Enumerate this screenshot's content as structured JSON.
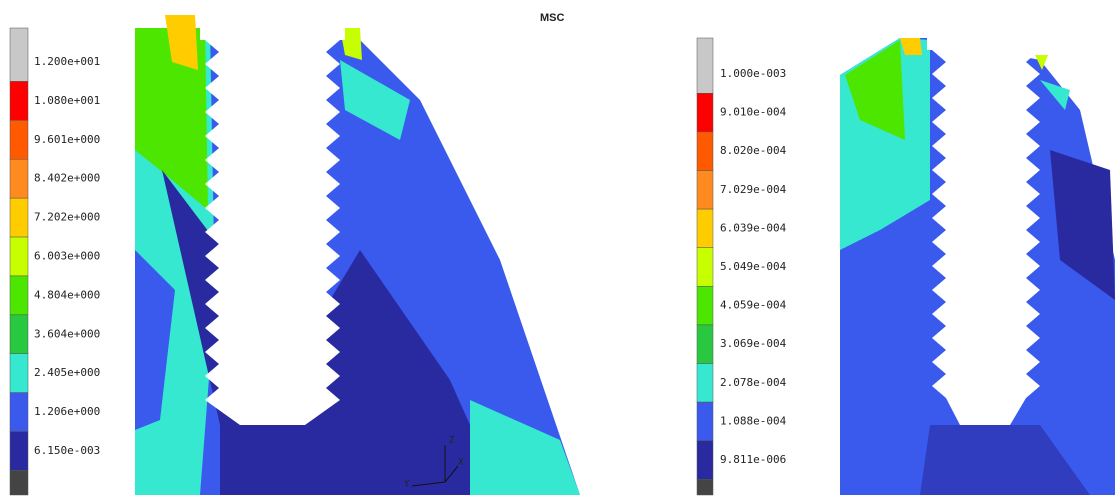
{
  "logo": "MSC",
  "triad": {
    "z": "Z",
    "y": "Y",
    "x": "X"
  },
  "panels": [
    {
      "legend_labels": [
        "1.200e+001",
        "1.080e+001",
        "9.601e+000",
        "8.402e+000",
        "7.202e+000",
        "6.003e+000",
        "4.804e+000",
        "3.604e+000",
        "2.405e+000",
        "1.206e+000",
        "6.150e-003"
      ],
      "legend_colors": [
        "#c8c8c8",
        "#ff0000",
        "#ff5a00",
        "#ff8a20",
        "#ffcc00",
        "#c8ff00",
        "#4ce600",
        "#28c840",
        "#36e8d0",
        "#3a5aee",
        "#2a2aa0",
        "#444444"
      ]
    },
    {
      "legend_labels": [
        "1.000e-003",
        "9.010e-004",
        "8.020e-004",
        "7.029e-004",
        "6.039e-004",
        "5.049e-004",
        "4.059e-004",
        "3.069e-004",
        "2.078e-004",
        "1.088e-004",
        "9.811e-006"
      ],
      "legend_colors": [
        "#c8c8c8",
        "#ff0000",
        "#ff5a00",
        "#ff8a20",
        "#ffcc00",
        "#c8ff00",
        "#4ce600",
        "#28c840",
        "#36e8d0",
        "#3a5aee",
        "#2a2aa0",
        "#444444"
      ]
    }
  ]
}
